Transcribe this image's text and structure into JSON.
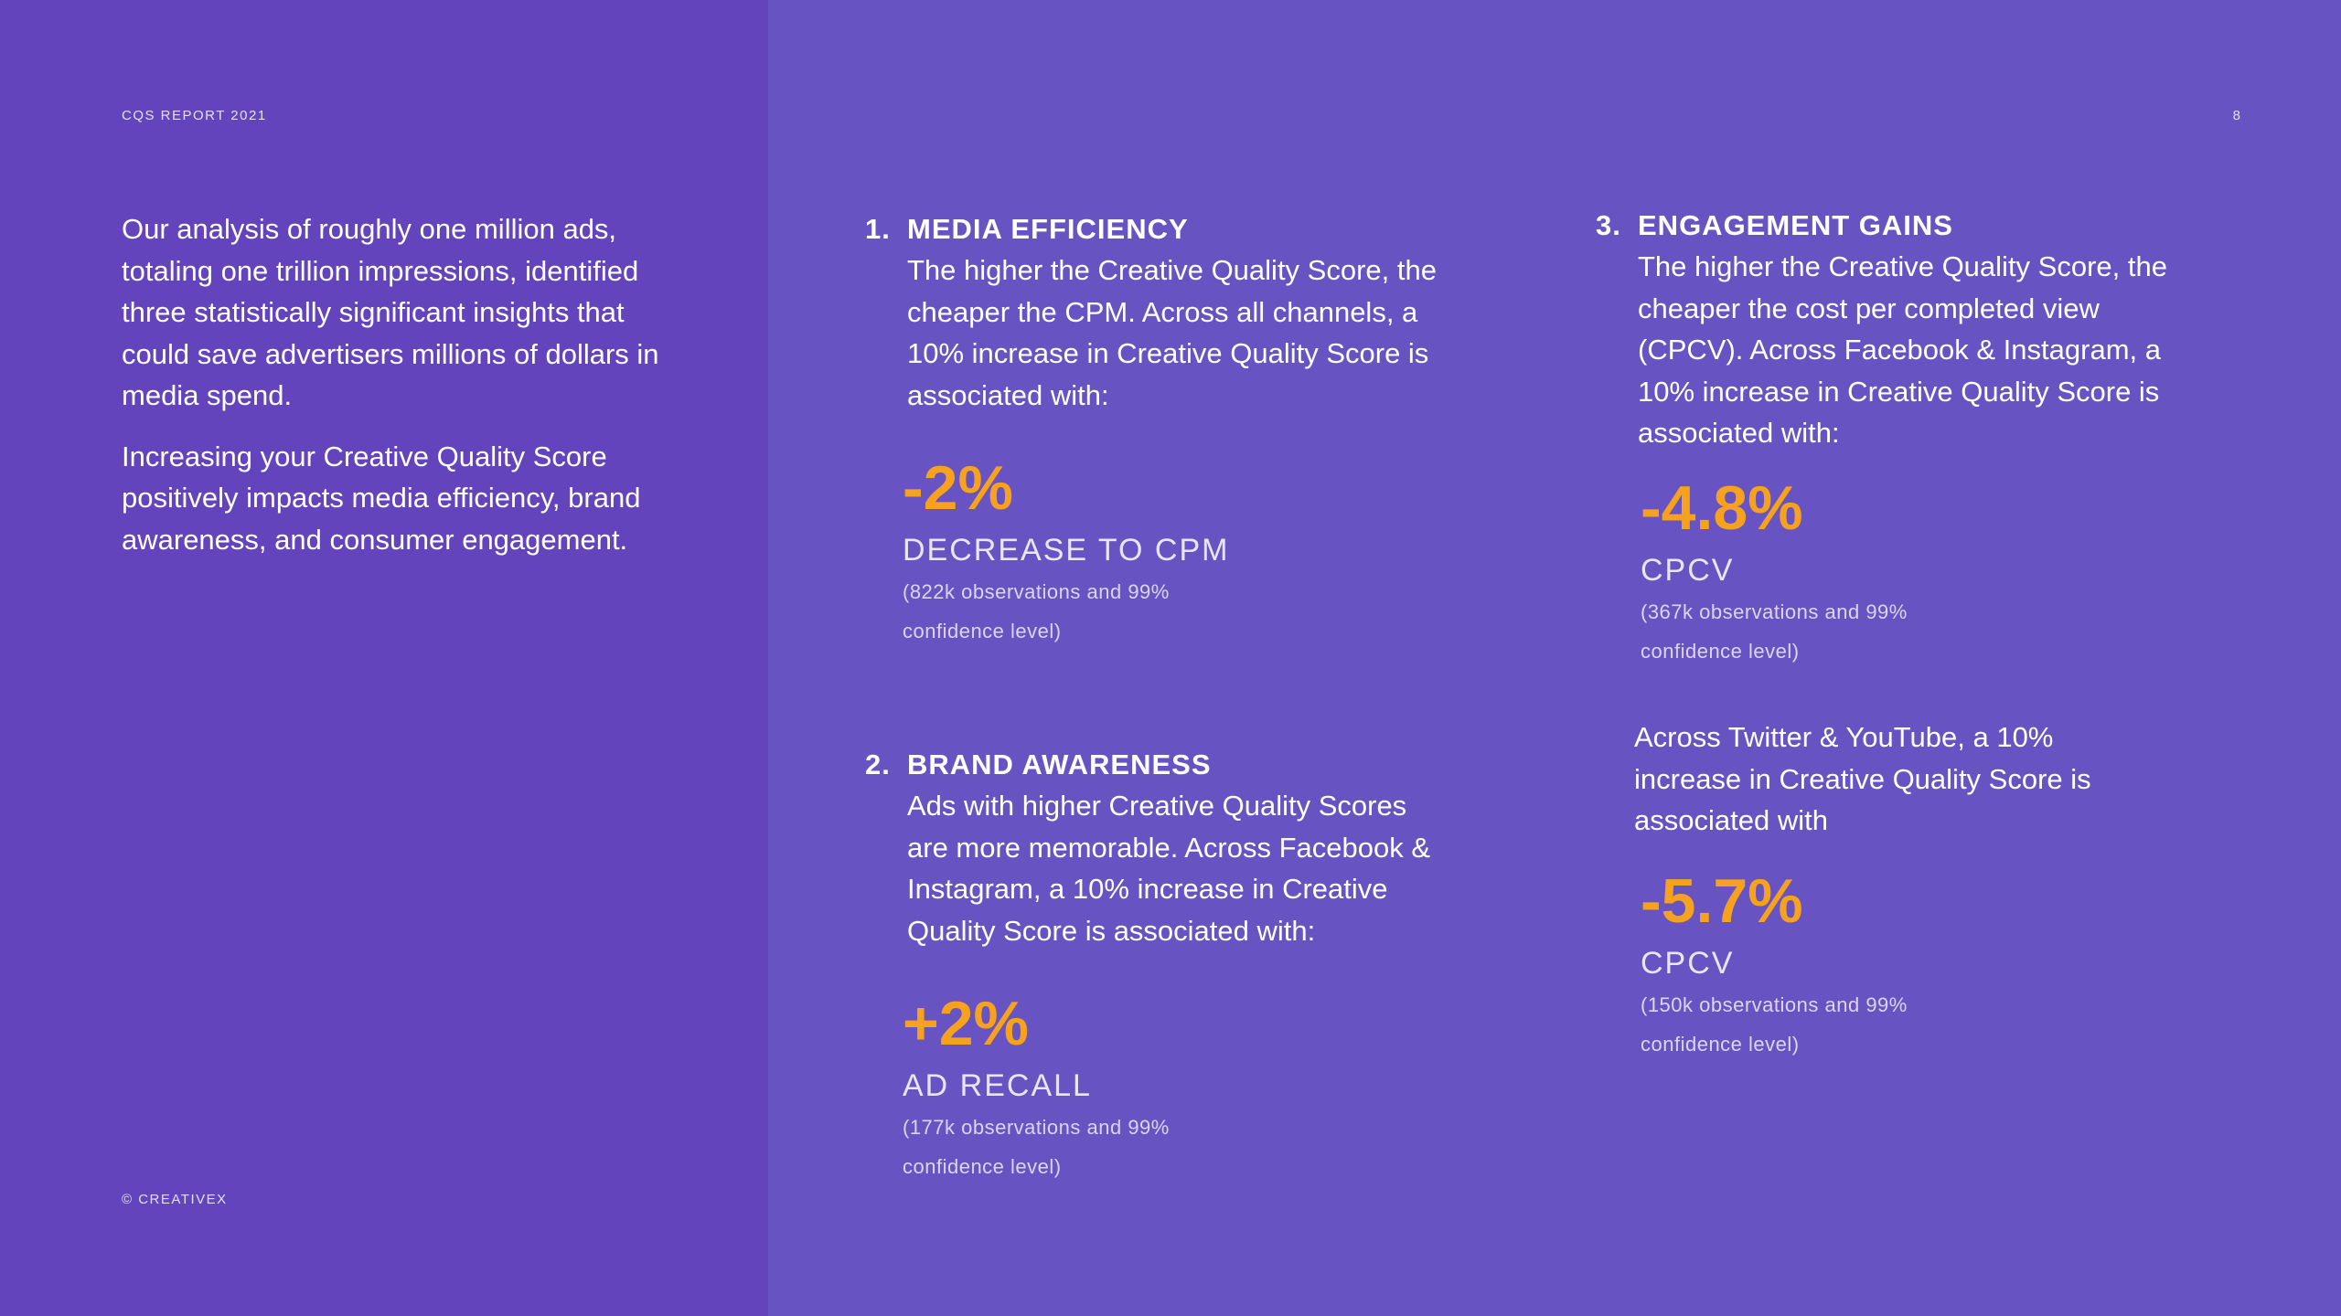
{
  "header": {
    "report_label": "CQS REPORT 2021",
    "page_number": "8"
  },
  "footer": {
    "copyright": "© CREATIVEX"
  },
  "intro": {
    "paragraph_1": "Our analysis of roughly one million ads, totaling one trillion impressions, identified three statistically significant insights that could save advertisers millions of dollars in media spend.",
    "paragraph_2": "Increasing your Creative Quality Score positively impacts media efficiency, brand awareness, and consumer engagement."
  },
  "sections": [
    {
      "number": "1.",
      "title": "MEDIA EFFICIENCY",
      "description": "The higher the Creative Quality Score, the cheaper the CPM. Across all channels, a 10% increase in Creative Quality Score is associated with:",
      "stat_value": "-2%",
      "stat_label": "DECREASE TO CPM",
      "stat_note": "(822k observations and 99% confidence level)"
    },
    {
      "number": "2.",
      "title": "BRAND AWARENESS",
      "description": "Ads with higher Creative Quality Scores are more memorable. Across Facebook & Instagram, a 10% increase in Creative Quality Score is associated with:",
      "stat_value": "+2%",
      "stat_label": "AD RECALL",
      "stat_note": "(177k observations and 99% confidence level)"
    },
    {
      "number": "3.",
      "title": "ENGAGEMENT GAINS",
      "description": "The higher the Creative Quality Score, the cheaper the cost per completed view (CPCV). Across Facebook & Instagram, a 10% increase in Creative Quality Score is associated with:",
      "stat_value": "-4.8%",
      "stat_label": "CPCV",
      "stat_note": "(367k observations and 99% confidence level)",
      "secondary_text": "Across Twitter & YouTube, a 10% increase in Creative Quality Score is associated with",
      "secondary_stat_value": "-5.7%",
      "secondary_stat_label": "CPCV",
      "secondary_stat_note": "(150k observations and 99% confidence level)"
    }
  ],
  "colors": {
    "left_panel": "#6444bc",
    "right_panel": "#6754c2",
    "accent": "#f6a21f"
  }
}
